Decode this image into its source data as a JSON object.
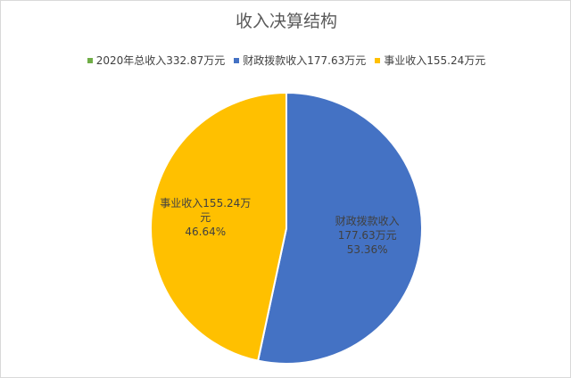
{
  "chart_data": {
    "type": "pie",
    "title": "收入决算结构",
    "categories": [
      "2020年总收入332.87万元",
      "财政拨款收入177.63万元",
      "事业收入155.24万元"
    ],
    "values": [
      0,
      53.36,
      46.64
    ],
    "value_labels": [
      null,
      "53.36%",
      "46.64%"
    ],
    "colors": [
      "#70ad47",
      "#4472c4",
      "#ffc000"
    ],
    "legend": "top"
  }
}
